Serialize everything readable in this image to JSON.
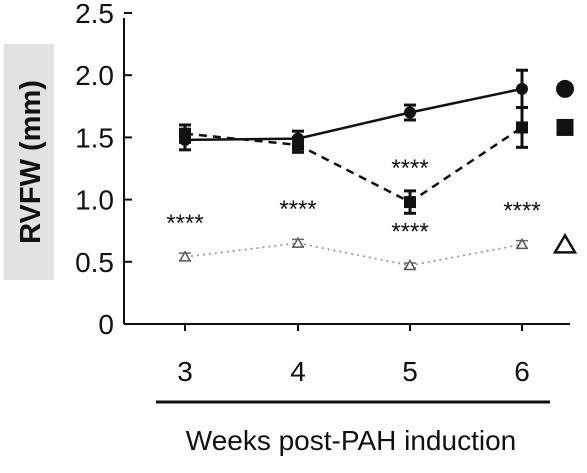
{
  "chart_data": {
    "type": "line",
    "title": "",
    "xlabel": "Weeks post-PAH induction",
    "ylabel": "RVFW (mm)",
    "x": [
      3,
      4,
      5,
      6
    ],
    "x_tick_labels": [
      "3",
      "4",
      "5",
      "6"
    ],
    "ylim": [
      0,
      2.5
    ],
    "y_ticks": [
      0,
      0.5,
      1.0,
      1.5,
      2.0,
      2.5
    ],
    "y_tick_labels": [
      "0",
      "0.5",
      "1.0",
      "1.5",
      "2.0",
      "2.5"
    ],
    "grid": false,
    "legend": "right, marker symbols only",
    "series": [
      {
        "marker": "circle",
        "line_style": "solid",
        "color": "#111111",
        "values": [
          1.48,
          1.49,
          1.7,
          1.89
        ],
        "errors": [
          0.08,
          0.06,
          0.06,
          0.15
        ]
      },
      {
        "marker": "square",
        "line_style": "dashed",
        "color": "#111111",
        "values": [
          1.53,
          1.44,
          0.98,
          1.58
        ],
        "errors": [
          0.07,
          0.06,
          0.09,
          0.16
        ]
      },
      {
        "marker": "open-triangle",
        "line_style": "dotted",
        "color": "#999999",
        "values": [
          0.54,
          0.65,
          0.47,
          0.64
        ],
        "errors": [
          0.03,
          0.03,
          0.02,
          0.03
        ]
      }
    ],
    "annotations": [
      {
        "text": "****",
        "x": 3,
        "y": 0.54
      },
      {
        "text": "****",
        "x": 4,
        "y": 0.65
      },
      {
        "text": "****",
        "x": 5,
        "y": 0.47
      },
      {
        "text": "****",
        "x": 6,
        "y": 0.64
      },
      {
        "text": "****",
        "x": 5,
        "y": 0.98
      }
    ]
  }
}
